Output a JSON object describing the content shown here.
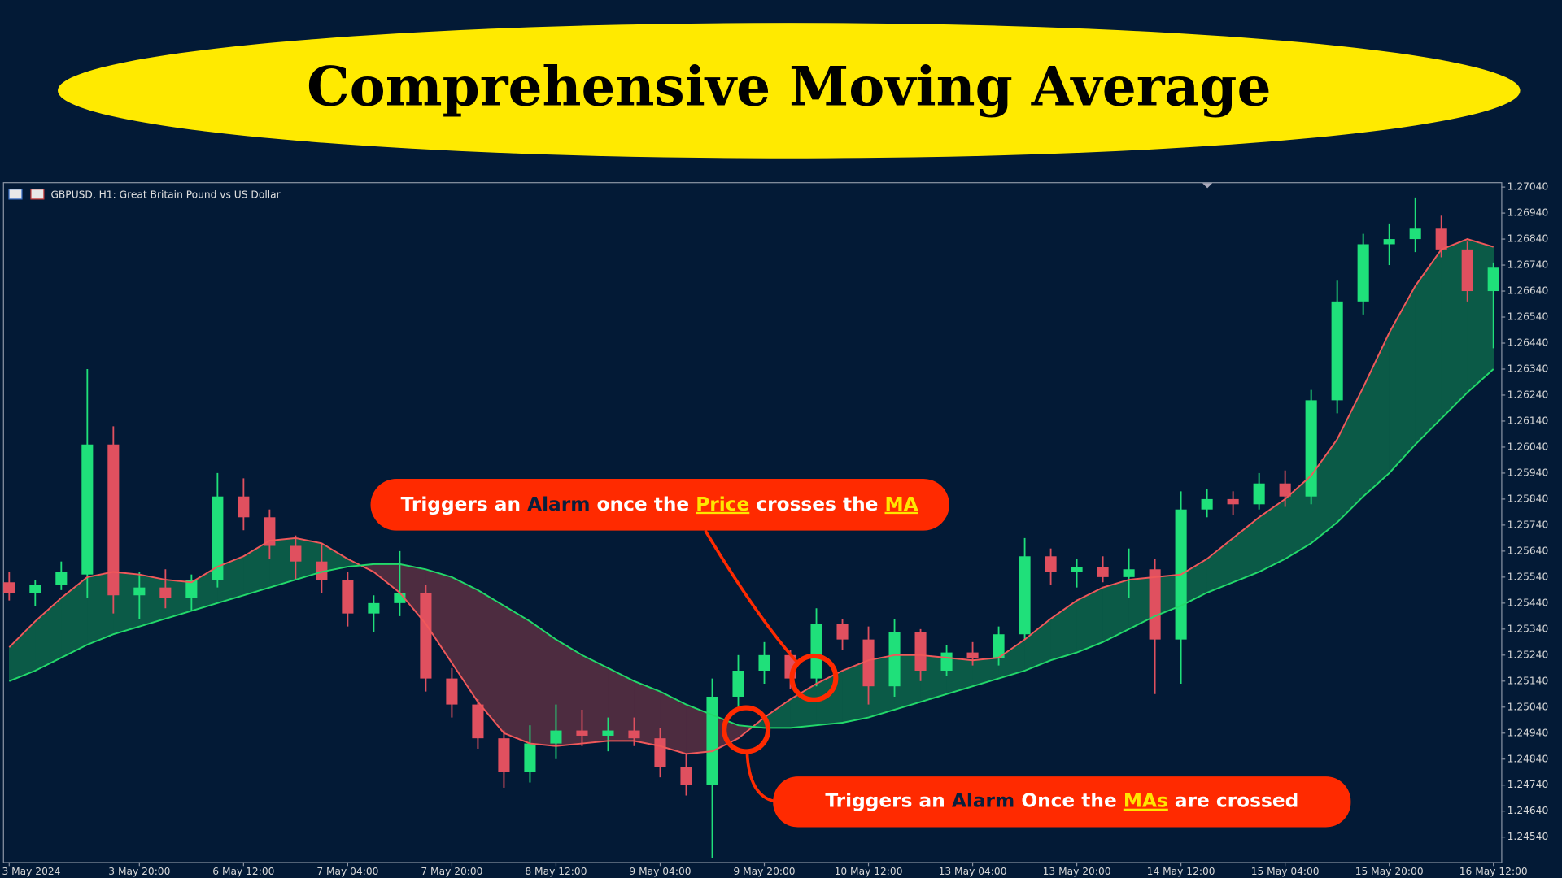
{
  "chart_data": {
    "type": "candlestick",
    "title": "Comprehensive Moving Average",
    "symbol": "GBPUSD, H1:  Great Britain Pound vs US Dollar",
    "annotations": [
      [
        "Triggers an ",
        "Alarm",
        " once the ",
        "Price",
        " crosses the ",
        "MA"
      ],
      [
        "Triggers an ",
        "Alarm",
        " Once the ",
        "MAs",
        " are crossed"
      ]
    ],
    "bull_color": "#1fe07a",
    "bear_color": "#e0505f",
    "fill_above": "#0b5a47",
    "fill_below": "#4d2c40",
    "grid": false,
    "xlim": [
      -0.2,
      57.3
    ],
    "ylim": [
      1.24444,
      1.27055
    ],
    "xticks": [
      {
        "value": 0,
        "label": "3 May 2024"
      },
      {
        "value": 5,
        "label": "3 May 20:00"
      },
      {
        "value": 9,
        "label": "6 May 12:00"
      },
      {
        "value": 13,
        "label": "7 May 04:00"
      },
      {
        "value": 17,
        "label": "7 May 20:00"
      },
      {
        "value": 21,
        "label": "8 May 12:00"
      },
      {
        "value": 25,
        "label": "9 May 04:00"
      },
      {
        "value": 29,
        "label": "9 May 20:00"
      },
      {
        "value": 33,
        "label": "10 May 12:00"
      },
      {
        "value": 37,
        "label": "13 May 04:00"
      },
      {
        "value": 41,
        "label": "13 May 20:00"
      },
      {
        "value": 45,
        "label": "14 May 12:00"
      },
      {
        "value": 49,
        "label": "15 May 04:00"
      },
      {
        "value": 53,
        "label": "15 May 20:00"
      },
      {
        "value": 57,
        "label": "16 May 12:00"
      }
    ],
    "yticks": [
      {
        "value": 1.2454,
        "label": "1.24540"
      },
      {
        "value": 1.2464,
        "label": "1.24640"
      },
      {
        "value": 1.2474,
        "label": "1.24740"
      },
      {
        "value": 1.2484,
        "label": "1.24840"
      },
      {
        "value": 1.2494,
        "label": "1.24940"
      },
      {
        "value": 1.2504,
        "label": "1.25040"
      },
      {
        "value": 1.2514,
        "label": "1.25140"
      },
      {
        "value": 1.2524,
        "label": "1.25240"
      },
      {
        "value": 1.2534,
        "label": "1.25340"
      },
      {
        "value": 1.2544,
        "label": "1.25440"
      },
      {
        "value": 1.2554,
        "label": "1.25540"
      },
      {
        "value": 1.2564,
        "label": "1.25640"
      },
      {
        "value": 1.2574,
        "label": "1.25740"
      },
      {
        "value": 1.2584,
        "label": "1.25840"
      },
      {
        "value": 1.2594,
        "label": "1.25940"
      },
      {
        "value": 1.2604,
        "label": "1.26040"
      },
      {
        "value": 1.2614,
        "label": "1.26140"
      },
      {
        "value": 1.2624,
        "label": "1.26240"
      },
      {
        "value": 1.2634,
        "label": "1.26340"
      },
      {
        "value": 1.2644,
        "label": "1.26440"
      },
      {
        "value": 1.2654,
        "label": "1.26540"
      },
      {
        "value": 1.2664,
        "label": "1.26640"
      },
      {
        "value": 1.2674,
        "label": "1.26740"
      },
      {
        "value": 1.2684,
        "label": "1.26840"
      },
      {
        "value": 1.2694,
        "label": "1.26940"
      },
      {
        "value": 1.2704,
        "label": "1.27040"
      }
    ],
    "ohlc": [
      [
        1.2552,
        1.2556,
        1.2545,
        1.2548
      ],
      [
        1.2548,
        1.2553,
        1.2543,
        1.2551
      ],
      [
        1.2551,
        1.256,
        1.2549,
        1.2556
      ],
      [
        1.2555,
        1.2634,
        1.2546,
        1.2605
      ],
      [
        1.2605,
        1.2612,
        1.254,
        1.2547
      ],
      [
        1.2547,
        1.2556,
        1.2538,
        1.255
      ],
      [
        1.255,
        1.2557,
        1.2542,
        1.2546
      ],
      [
        1.2546,
        1.2555,
        1.2541,
        1.2553
      ],
      [
        1.2553,
        1.2594,
        1.255,
        1.2585
      ],
      [
        1.2585,
        1.2592,
        1.2572,
        1.2577
      ],
      [
        1.2577,
        1.258,
        1.2561,
        1.2566
      ],
      [
        1.2566,
        1.257,
        1.2553,
        1.256
      ],
      [
        1.256,
        1.2567,
        1.2548,
        1.2553
      ],
      [
        1.2553,
        1.2556,
        1.2535,
        1.254
      ],
      [
        1.254,
        1.2547,
        1.2533,
        1.2544
      ],
      [
        1.2544,
        1.2564,
        1.2539,
        1.2548
      ],
      [
        1.2548,
        1.2551,
        1.251,
        1.2515
      ],
      [
        1.2515,
        1.2519,
        1.25,
        1.2505
      ],
      [
        1.2505,
        1.2507,
        1.2488,
        1.2492
      ],
      [
        1.2492,
        1.2495,
        1.2473,
        1.2479
      ],
      [
        1.2479,
        1.2497,
        1.2475,
        1.249
      ],
      [
        1.249,
        1.2505,
        1.2484,
        1.2495
      ],
      [
        1.2495,
        1.2503,
        1.2489,
        1.2493
      ],
      [
        1.2493,
        1.25,
        1.2487,
        1.2495
      ],
      [
        1.2495,
        1.25,
        1.2489,
        1.2492
      ],
      [
        1.2492,
        1.2496,
        1.2477,
        1.2481
      ],
      [
        1.2481,
        1.2486,
        1.247,
        1.2474
      ],
      [
        1.2474,
        1.2515,
        1.2446,
        1.2508
      ],
      [
        1.2508,
        1.2524,
        1.2503,
        1.2518
      ],
      [
        1.2518,
        1.2529,
        1.2513,
        1.2524
      ],
      [
        1.2524,
        1.2526,
        1.2511,
        1.2515
      ],
      [
        1.2515,
        1.2542,
        1.2512,
        1.2536
      ],
      [
        1.2536,
        1.2538,
        1.2526,
        1.253
      ],
      [
        1.253,
        1.2535,
        1.2505,
        1.2512
      ],
      [
        1.2512,
        1.2538,
        1.2508,
        1.2533
      ],
      [
        1.2533,
        1.2534,
        1.2514,
        1.2518
      ],
      [
        1.2518,
        1.2528,
        1.2516,
        1.2525
      ],
      [
        1.2525,
        1.2529,
        1.252,
        1.2523
      ],
      [
        1.2523,
        1.2535,
        1.252,
        1.2532
      ],
      [
        1.2532,
        1.2569,
        1.253,
        1.2562
      ],
      [
        1.2562,
        1.2565,
        1.2551,
        1.2556
      ],
      [
        1.2556,
        1.2561,
        1.255,
        1.2558
      ],
      [
        1.2558,
        1.2562,
        1.2552,
        1.2554
      ],
      [
        1.2554,
        1.2565,
        1.2546,
        1.2557
      ],
      [
        1.2557,
        1.2561,
        1.2509,
        1.253
      ],
      [
        1.253,
        1.2587,
        1.2513,
        1.258
      ],
      [
        1.258,
        1.2588,
        1.2577,
        1.2584
      ],
      [
        1.2584,
        1.2587,
        1.2578,
        1.2582
      ],
      [
        1.2582,
        1.2594,
        1.258,
        1.259
      ],
      [
        1.259,
        1.2595,
        1.2581,
        1.2585
      ],
      [
        1.2585,
        1.2626,
        1.2582,
        1.2622
      ],
      [
        1.2622,
        1.2668,
        1.2617,
        1.266
      ],
      [
        1.266,
        1.2686,
        1.2655,
        1.2682
      ],
      [
        1.2682,
        1.269,
        1.2674,
        1.2684
      ],
      [
        1.2684,
        1.27,
        1.2679,
        1.2688
      ],
      [
        1.2688,
        1.2693,
        1.2677,
        1.268
      ],
      [
        1.268,
        1.2683,
        1.266,
        1.2664
      ],
      [
        1.2664,
        1.2675,
        1.2642,
        1.2673
      ]
    ],
    "series": [
      {
        "color": "#f0585a",
        "values": [
          1.2527,
          1.2537,
          1.2546,
          1.2554,
          1.2556,
          1.2555,
          1.2553,
          1.2552,
          1.2558,
          1.2562,
          1.2568,
          1.2569,
          1.2567,
          1.2561,
          1.2556,
          1.2548,
          1.2536,
          1.2521,
          1.2506,
          1.2494,
          1.249,
          1.2489,
          1.249,
          1.2491,
          1.2491,
          1.2489,
          1.2486,
          1.2487,
          1.2492,
          1.25,
          1.2507,
          1.2513,
          1.2518,
          1.2522,
          1.2524,
          1.2524,
          1.2523,
          1.2522,
          1.2523,
          1.253,
          1.2538,
          1.2545,
          1.255,
          1.2553,
          1.2554,
          1.2555,
          1.2561,
          1.2569,
          1.2577,
          1.2584,
          1.2593,
          1.2607,
          1.2627,
          1.2648,
          1.2666,
          1.268,
          1.2684,
          1.2681
        ]
      },
      {
        "color": "#22d96a",
        "values": [
          1.2514,
          1.2518,
          1.2523,
          1.2528,
          1.2532,
          1.2535,
          1.2538,
          1.2541,
          1.2544,
          1.2547,
          1.255,
          1.2553,
          1.2556,
          1.2558,
          1.2559,
          1.2559,
          1.2557,
          1.2554,
          1.2549,
          1.2543,
          1.2537,
          1.253,
          1.2524,
          1.2519,
          1.2514,
          1.251,
          1.2505,
          1.2501,
          1.2497,
          1.2496,
          1.2496,
          1.2497,
          1.2498,
          1.25,
          1.2503,
          1.2506,
          1.2509,
          1.2512,
          1.2515,
          1.2518,
          1.2522,
          1.2525,
          1.2529,
          1.2534,
          1.2539,
          1.2543,
          1.2548,
          1.2552,
          1.2556,
          1.2561,
          1.2567,
          1.2575,
          1.2585,
          1.2594,
          1.2605,
          1.2615,
          1.2625,
          1.2634
        ]
      }
    ]
  }
}
